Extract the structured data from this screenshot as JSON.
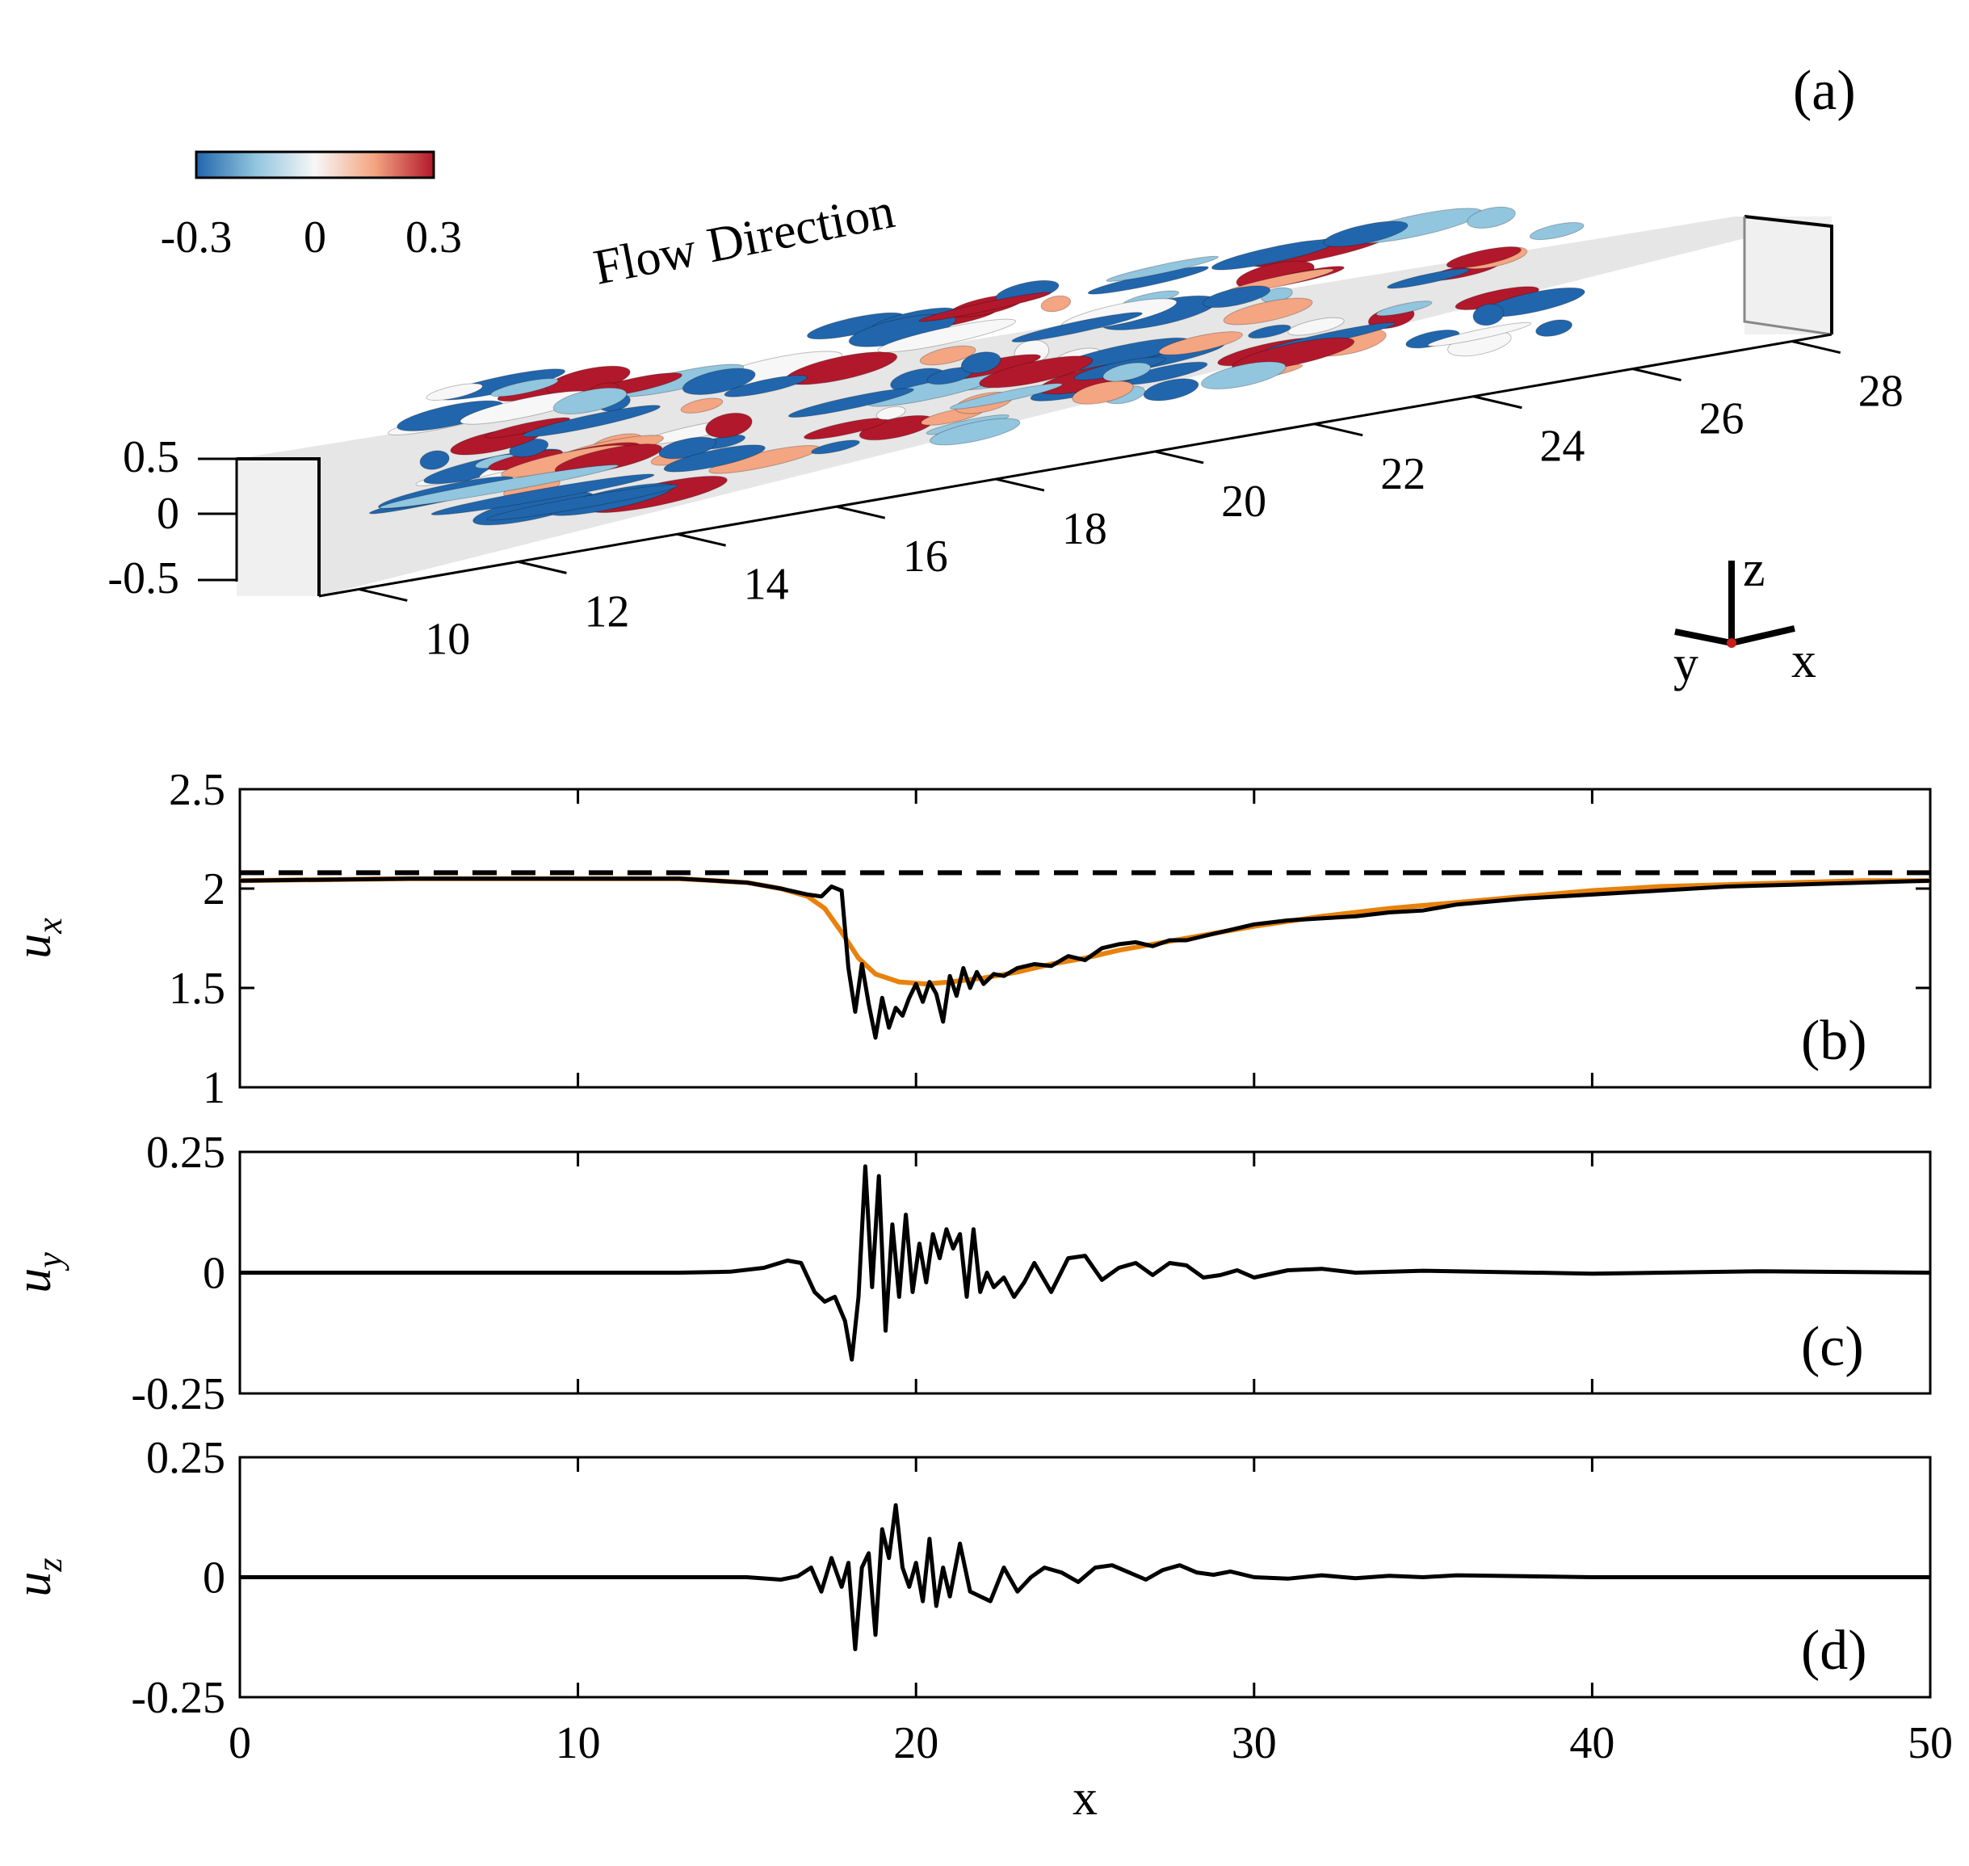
{
  "chart_data": [
    {
      "type": "3d-isosurface",
      "panel_label": "(a)",
      "annotation": "Flow Direction",
      "colorbar": {
        "ticks": [
          "-0.3",
          "0",
          "0.3"
        ],
        "range": [
          -0.3,
          0.3
        ],
        "colors": [
          "#2166ac",
          "#92c5de",
          "#f7f7f7",
          "#f4a582",
          "#b2182b"
        ]
      },
      "x_ticks": [
        "10",
        "12",
        "14",
        "16",
        "18",
        "20",
        "22",
        "24",
        "26",
        "28"
      ],
      "z_ticks": [
        "0.5",
        "0",
        "-0.5"
      ],
      "triad_labels": {
        "z": "z",
        "y": "y",
        "x": "x"
      },
      "x_extent": [
        9.5,
        28.5
      ],
      "structure_extent_x": [
        11,
        25
      ]
    },
    {
      "type": "line",
      "panel_label": "(b)",
      "ylabel": "u_x",
      "ylabel_main": "u",
      "ylabel_sub": "x",
      "xlim": [
        0,
        50
      ],
      "ylim": [
        1,
        2.5
      ],
      "yticks": [
        "2.5",
        "2",
        "1.5",
        "1"
      ],
      "ytick_values": [
        2.5,
        2,
        1.5,
        1
      ],
      "reference_line": {
        "y": 2.08,
        "style": "dashed",
        "color": "#000000"
      },
      "series": [
        {
          "color": "#e8820c",
          "x": [
            0,
            5,
            10,
            13,
            15,
            16,
            16.8,
            17.3,
            17.8,
            18.3,
            18.8,
            19.5,
            20.3,
            21,
            22,
            23,
            24,
            25,
            26,
            27,
            28,
            29,
            30,
            32,
            34,
            36,
            38,
            40,
            42,
            44,
            46,
            48,
            50
          ],
          "values": [
            2.04,
            2.05,
            2.05,
            2.05,
            2.03,
            2.0,
            1.96,
            1.9,
            1.78,
            1.65,
            1.57,
            1.53,
            1.52,
            1.53,
            1.55,
            1.58,
            1.62,
            1.65,
            1.69,
            1.72,
            1.75,
            1.78,
            1.81,
            1.86,
            1.9,
            1.93,
            1.96,
            1.99,
            2.01,
            2.02,
            2.03,
            2.04,
            2.04
          ]
        },
        {
          "color": "#000000",
          "x": [
            0,
            5,
            10,
            13,
            15,
            16,
            16.8,
            17.2,
            17.5,
            17.8,
            18.0,
            18.2,
            18.4,
            18.6,
            18.8,
            19.0,
            19.2,
            19.4,
            19.6,
            19.8,
            20.0,
            20.2,
            20.4,
            20.6,
            20.8,
            21.0,
            21.2,
            21.4,
            21.6,
            21.8,
            22.0,
            22.3,
            22.6,
            23.0,
            23.5,
            24.0,
            24.5,
            25.0,
            25.5,
            26.0,
            26.5,
            27.0,
            27.5,
            28.0,
            28.5,
            29.0,
            29.5,
            30.0,
            31.0,
            32.0,
            33.0,
            34.0,
            35.0,
            36.0,
            38.0,
            40.0,
            42.0,
            44.0,
            46.0,
            48.0,
            50.0
          ],
          "values": [
            2.04,
            2.05,
            2.05,
            2.05,
            2.03,
            2.0,
            1.97,
            1.96,
            2.01,
            1.99,
            1.6,
            1.38,
            1.62,
            1.42,
            1.25,
            1.45,
            1.3,
            1.4,
            1.36,
            1.45,
            1.52,
            1.43,
            1.53,
            1.47,
            1.33,
            1.56,
            1.46,
            1.6,
            1.5,
            1.58,
            1.52,
            1.57,
            1.56,
            1.6,
            1.62,
            1.61,
            1.66,
            1.64,
            1.7,
            1.72,
            1.73,
            1.71,
            1.74,
            1.74,
            1.76,
            1.78,
            1.8,
            1.82,
            1.84,
            1.85,
            1.86,
            1.88,
            1.89,
            1.92,
            1.95,
            1.97,
            1.99,
            2.01,
            2.02,
            2.03,
            2.04
          ]
        }
      ]
    },
    {
      "type": "line",
      "panel_label": "(c)",
      "ylabel": "u_y",
      "ylabel_main": "u",
      "ylabel_sub": "y",
      "xlim": [
        0,
        50
      ],
      "ylim": [
        -0.25,
        0.25
      ],
      "yticks": [
        "0.25",
        "0",
        "-0.25"
      ],
      "ytick_values": [
        0.25,
        0,
        -0.25
      ],
      "series": [
        {
          "color": "#000000",
          "x": [
            0,
            5,
            10,
            13,
            14.5,
            15.5,
            16.2,
            16.6,
            17.0,
            17.3,
            17.6,
            17.9,
            18.1,
            18.3,
            18.5,
            18.7,
            18.9,
            19.1,
            19.3,
            19.5,
            19.7,
            19.9,
            20.1,
            20.3,
            20.5,
            20.7,
            20.9,
            21.1,
            21.3,
            21.5,
            21.7,
            21.9,
            22.1,
            22.3,
            22.6,
            22.9,
            23.2,
            23.5,
            24.0,
            24.5,
            25.0,
            25.5,
            26.0,
            26.5,
            27.0,
            27.5,
            28.0,
            28.5,
            29.0,
            29.5,
            30.0,
            31.0,
            32.0,
            33.0,
            35.0,
            40.0,
            45.0,
            50.0
          ],
          "values": [
            0,
            0,
            0,
            0,
            0.002,
            0.01,
            0.025,
            0.02,
            -0.04,
            -0.06,
            -0.05,
            -0.1,
            -0.18,
            -0.05,
            0.22,
            -0.03,
            0.2,
            -0.12,
            0.1,
            -0.05,
            0.12,
            -0.04,
            0.06,
            -0.02,
            0.08,
            0.03,
            0.09,
            0.05,
            0.08,
            -0.05,
            0.09,
            -0.04,
            0.0,
            -0.03,
            -0.01,
            -0.05,
            -0.02,
            0.02,
            -0.04,
            0.03,
            0.035,
            -0.015,
            0.01,
            0.02,
            -0.005,
            0.02,
            0.015,
            -0.01,
            -0.005,
            0.005,
            -0.01,
            0.005,
            0.008,
            0.0,
            0.004,
            -0.002,
            0.003,
            0.0
          ]
        }
      ]
    },
    {
      "type": "line",
      "panel_label": "(d)",
      "ylabel": "u_z",
      "ylabel_main": "u",
      "ylabel_sub": "z",
      "xlabel": "x",
      "xlim": [
        0,
        50
      ],
      "ylim": [
        -0.25,
        0.25
      ],
      "yticks": [
        "0.25",
        "0",
        "-0.25"
      ],
      "ytick_values": [
        0.25,
        0,
        -0.25
      ],
      "xticks": [
        "0",
        "10",
        "20",
        "30",
        "40",
        "50"
      ],
      "xtick_values": [
        0,
        10,
        20,
        30,
        40,
        50
      ],
      "series": [
        {
          "color": "#000000",
          "x": [
            0,
            5,
            10,
            13,
            15,
            16.0,
            16.5,
            16.9,
            17.2,
            17.5,
            17.8,
            18.0,
            18.2,
            18.4,
            18.6,
            18.8,
            19.0,
            19.2,
            19.4,
            19.6,
            19.8,
            20.0,
            20.2,
            20.4,
            20.6,
            20.8,
            21.0,
            21.3,
            21.6,
            21.9,
            22.2,
            22.6,
            23.0,
            23.4,
            23.8,
            24.3,
            24.8,
            25.3,
            25.8,
            26.3,
            26.8,
            27.3,
            27.8,
            28.3,
            28.8,
            29.3,
            30,
            31,
            32,
            33,
            34,
            35,
            36,
            38,
            40,
            45,
            50
          ],
          "values": [
            0,
            0,
            0,
            0,
            0,
            -0.005,
            0.002,
            0.02,
            -0.03,
            0.04,
            -0.02,
            0.03,
            -0.15,
            0.02,
            0.05,
            -0.12,
            0.1,
            0.04,
            0.15,
            0.02,
            -0.02,
            0.03,
            -0.05,
            0.08,
            -0.06,
            0.02,
            -0.04,
            0.07,
            -0.03,
            -0.04,
            -0.05,
            0.02,
            -0.03,
            0.0,
            0.02,
            0.01,
            -0.01,
            0.02,
            0.025,
            0.01,
            -0.005,
            0.015,
            0.025,
            0.01,
            0.005,
            0.012,
            0.0,
            -0.003,
            0.004,
            -0.002,
            0.003,
            0.0,
            0.004,
            0.002,
            0.0,
            0.0,
            0.0
          ]
        }
      ]
    }
  ]
}
